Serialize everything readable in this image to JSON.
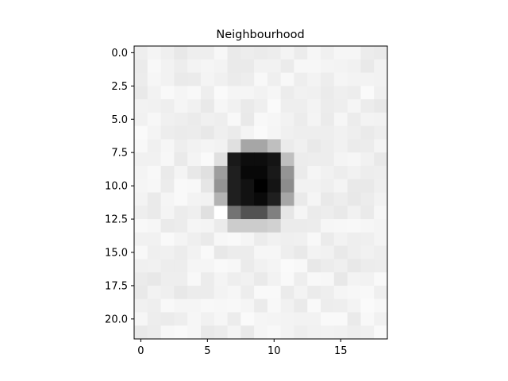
{
  "chart_data": {
    "type": "heatmap",
    "title": "Neighbourhood",
    "xlabel": "",
    "ylabel": "",
    "colormap": "gray_r",
    "grid": false,
    "legend": "none",
    "n_cols": 19,
    "n_rows": 22,
    "xlim": [
      -0.5,
      18.5
    ],
    "ylim": [
      21.5,
      -0.5
    ],
    "xticks": [
      0,
      5,
      10,
      15
    ],
    "xtick_labels": [
      "0",
      "5",
      "10",
      "15"
    ],
    "yticks": [
      0,
      2.5,
      5,
      7.5,
      10,
      12.5,
      15,
      17.5,
      20
    ],
    "ytick_labels": [
      "0.0",
      "2.5",
      "5.0",
      "7.5",
      "10.0",
      "12.5",
      "15.0",
      "17.5",
      "20.0"
    ],
    "hotspot": {
      "center": [
        9,
        10
      ],
      "grid_values": [
        {
          "row": 7,
          "cells": [
            [
              6,
              0.05
            ],
            [
              7,
              0.12
            ],
            [
              8,
              0.35
            ],
            [
              9,
              0.35
            ],
            [
              10,
              0.25
            ],
            [
              11,
              0.08
            ]
          ]
        },
        {
          "row": 8,
          "cells": [
            [
              6,
              0.12
            ],
            [
              7,
              0.9
            ],
            [
              8,
              0.95
            ],
            [
              9,
              0.95
            ],
            [
              10,
              0.92
            ],
            [
              11,
              0.25
            ]
          ]
        },
        {
          "row": 9,
          "cells": [
            [
              5,
              0.12
            ],
            [
              6,
              0.38
            ],
            [
              7,
              0.88
            ],
            [
              8,
              0.97
            ],
            [
              9,
              0.97
            ],
            [
              10,
              0.9
            ],
            [
              11,
              0.42
            ]
          ]
        },
        {
          "row": 10,
          "cells": [
            [
              5,
              0.1
            ],
            [
              6,
              0.42
            ],
            [
              7,
              0.88
            ],
            [
              8,
              0.93
            ],
            [
              9,
              1.0
            ],
            [
              10,
              0.92
            ],
            [
              11,
              0.45
            ]
          ]
        },
        {
          "row": 11,
          "cells": [
            [
              5,
              0.05
            ],
            [
              6,
              0.3
            ],
            [
              7,
              0.88
            ],
            [
              8,
              0.93
            ],
            [
              9,
              0.96
            ],
            [
              10,
              0.88
            ],
            [
              11,
              0.35
            ]
          ]
        },
        {
          "row": 12,
          "cells": [
            [
              5,
              0.12
            ],
            [
              6,
              0.0
            ],
            [
              7,
              0.55
            ],
            [
              8,
              0.68
            ],
            [
              9,
              0.68
            ],
            [
              10,
              0.5
            ],
            [
              11,
              0.1
            ]
          ]
        },
        {
          "row": 13,
          "cells": [
            [
              7,
              0.2
            ],
            [
              8,
              0.2
            ],
            [
              9,
              0.2
            ],
            [
              10,
              0.18
            ]
          ]
        }
      ]
    }
  }
}
